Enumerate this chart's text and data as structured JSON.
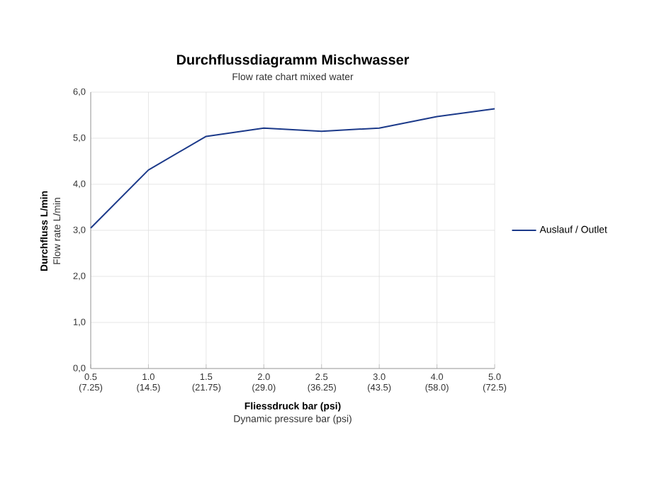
{
  "chart_data": {
    "type": "line",
    "title": "Durchflussdiagramm Mischwasser",
    "subtitle": "Flow rate chart mixed water",
    "xlabel": "Fliessdruck bar (psi)",
    "ylabel": "Durchfluss L/min",
    "annotations": [
      "Dynamic pressure bar (psi)",
      "Flow rate L/min"
    ],
    "categories": [
      "0.5 (7.25)",
      "1.0 (14.5)",
      "1.5 (21.75)",
      "2.0 (29.0)",
      "2.5 (36.25)",
      "3.0 (43.5)",
      "4.0 (58.0)",
      "5.0 (72.5)"
    ],
    "series": [
      {
        "name": "Auslauf / Outlet",
        "color": "#1c3a8a",
        "values": [
          3.05,
          4.31,
          5.04,
          5.22,
          5.15,
          5.22,
          5.47,
          5.64
        ]
      }
    ],
    "ylim": [
      0,
      6
    ],
    "yticks": [
      {
        "value": 0,
        "label": "0,0"
      },
      {
        "value": 1,
        "label": "1,0"
      },
      {
        "value": 2,
        "label": "2,0"
      },
      {
        "value": 3,
        "label": "3,0"
      },
      {
        "value": 4,
        "label": "4,0"
      },
      {
        "value": 5,
        "label": "5,0"
      },
      {
        "value": 6,
        "label": "6,0"
      }
    ],
    "grid": true,
    "legend": "right",
    "marker": "none",
    "line_style": "solid"
  }
}
